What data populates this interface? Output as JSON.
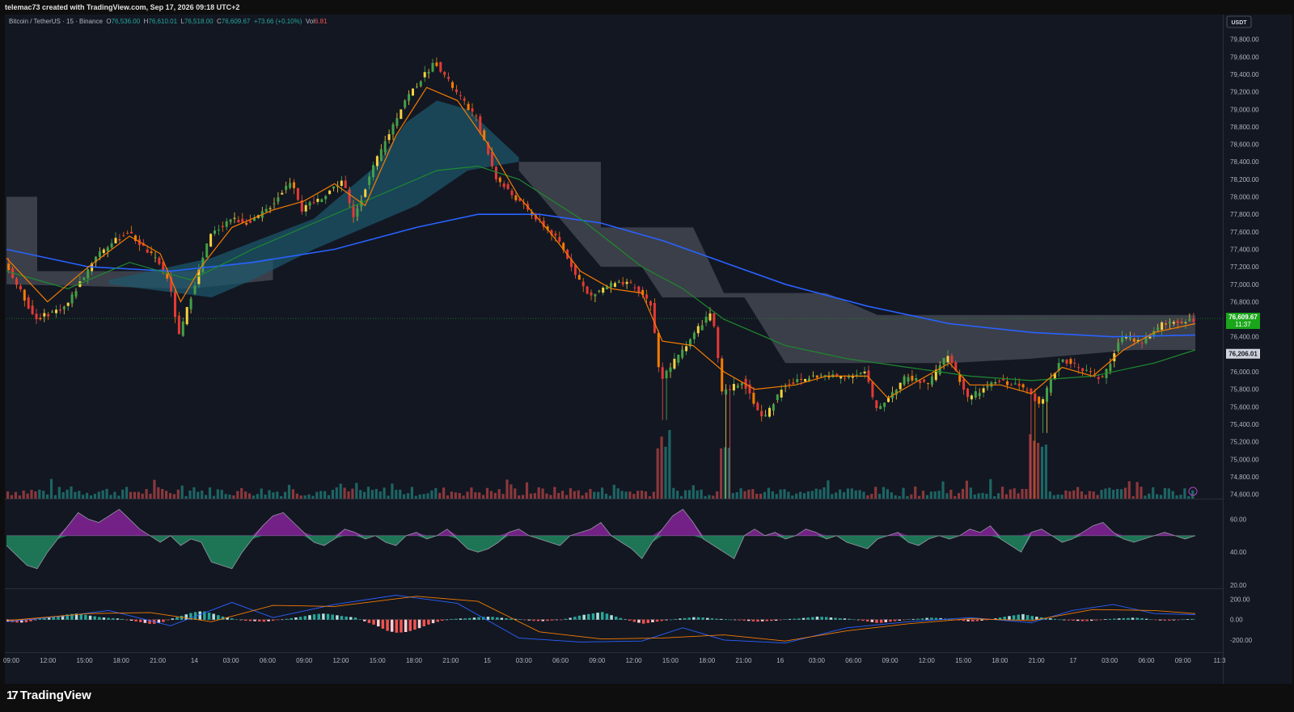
{
  "header": {
    "attribution": "telemac73 created with TradingView.com, Sep 17, 2026 09:18 UTC+2"
  },
  "legend": {
    "symbol": "Bitcoin / TetherUS · 15 · Binance",
    "open_label": "O",
    "open": "76,536.00",
    "high_label": "H",
    "high": "76,610.01",
    "low_label": "L",
    "low": "76,518.00",
    "close_label": "C",
    "close": "76,609.67",
    "change": "+73.66 (+0.10%)",
    "vol_label": "Vol",
    "vol": "6.81"
  },
  "currency_badge": "USDT",
  "price_badge": {
    "value": "76,609.67",
    "countdown": "11:37",
    "color": "#1aa61a"
  },
  "level_badge": {
    "value": "76,206.01"
  },
  "brand": {
    "name": "TradingView"
  },
  "colors": {
    "up": "#26a69a",
    "down": "#ef5350",
    "bg": "#131722",
    "ema_fast": "#f57c00",
    "ema_mid": "#1e8a2e",
    "ema_slow": "#2962ff"
  },
  "chart_data": [
    {
      "type": "candlestick",
      "price_ticks": [
        "79,800.00",
        "79,600.00",
        "79,400.00",
        "79,200.00",
        "79,000.00",
        "78,800.00",
        "78,600.00",
        "78,400.00",
        "78,200.00",
        "78,000.00",
        "77,800.00",
        "77,600.00",
        "77,400.00",
        "77,200.00",
        "77,000.00",
        "76,800.00",
        "76,400.00",
        "76,000.00",
        "75,800.00",
        "75,600.00",
        "75,400.00",
        "75,200.00",
        "75,000.00",
        "74,800.00",
        "74,600.00"
      ],
      "time_ticks": [
        "09:00",
        "12:00",
        "15:00",
        "18:00",
        "21:00",
        "14",
        "03:00",
        "06:00",
        "09:00",
        "12:00",
        "15:00",
        "18:00",
        "21:00",
        "15",
        "03:00",
        "06:00",
        "09:00",
        "12:00",
        "15:00",
        "18:00",
        "21:00",
        "16",
        "03:00",
        "06:00",
        "09:00",
        "12:00",
        "15:00",
        "18:00",
        "21:00",
        "17",
        "03:00",
        "06:00",
        "09:00",
        "11:3"
      ],
      "ylim": [
        74550,
        79880
      ],
      "path": [
        [
          0,
          77250
        ],
        [
          3,
          76600
        ],
        [
          6,
          76750
        ],
        [
          9,
          77350
        ],
        [
          12,
          77600
        ],
        [
          15,
          77250
        ],
        [
          16,
          77050
        ],
        [
          17,
          76400
        ],
        [
          18,
          76800
        ],
        [
          20,
          77550
        ],
        [
          22,
          77750
        ],
        [
          24,
          77700
        ],
        [
          26,
          77900
        ],
        [
          28,
          78200
        ],
        [
          29,
          77850
        ],
        [
          31,
          78000
        ],
        [
          33,
          78200
        ],
        [
          34,
          77750
        ],
        [
          36,
          78350
        ],
        [
          39,
          79100
        ],
        [
          42,
          79550
        ],
        [
          44,
          79200
        ],
        [
          46,
          78900
        ],
        [
          48,
          78200
        ],
        [
          51,
          77850
        ],
        [
          54,
          77500
        ],
        [
          57,
          76850
        ],
        [
          59,
          77000
        ],
        [
          61,
          77000
        ],
        [
          63,
          76800
        ],
        [
          64,
          75900
        ],
        [
          67,
          76400
        ],
        [
          69,
          76700
        ],
        [
          70,
          75750
        ],
        [
          72,
          75900
        ],
        [
          74,
          75450
        ],
        [
          76,
          75850
        ],
        [
          79,
          75950
        ],
        [
          82,
          75950
        ],
        [
          84,
          76000
        ],
        [
          85,
          75550
        ],
        [
          88,
          75950
        ],
        [
          90,
          75850
        ],
        [
          92,
          76200
        ],
        [
          94,
          75700
        ],
        [
          97,
          75900
        ],
        [
          100,
          75800
        ],
        [
          101,
          75600
        ],
        [
          103,
          76150
        ],
        [
          105,
          76050
        ],
        [
          107,
          75900
        ],
        [
          109,
          76400
        ],
        [
          111,
          76350
        ],
        [
          113,
          76550
        ],
        [
          116,
          76600
        ]
      ],
      "ema_fast": [
        [
          0,
          77300
        ],
        [
          4,
          76800
        ],
        [
          8,
          77200
        ],
        [
          12,
          77550
        ],
        [
          15,
          77350
        ],
        [
          17,
          76800
        ],
        [
          19,
          77200
        ],
        [
          22,
          77650
        ],
        [
          26,
          77850
        ],
        [
          29,
          77950
        ],
        [
          32,
          78150
        ],
        [
          35,
          77900
        ],
        [
          38,
          78700
        ],
        [
          41,
          79250
        ],
        [
          44,
          79100
        ],
        [
          47,
          78600
        ],
        [
          50,
          78000
        ],
        [
          53,
          77600
        ],
        [
          56,
          77150
        ],
        [
          59,
          76950
        ],
        [
          62,
          76900
        ],
        [
          64,
          76350
        ],
        [
          67,
          76300
        ],
        [
          70,
          76000
        ],
        [
          73,
          75800
        ],
        [
          77,
          75850
        ],
        [
          80,
          75950
        ],
        [
          84,
          75950
        ],
        [
          86,
          75700
        ],
        [
          89,
          75900
        ],
        [
          92,
          76100
        ],
        [
          94,
          75850
        ],
        [
          97,
          75850
        ],
        [
          100,
          75750
        ],
        [
          103,
          76050
        ],
        [
          106,
          75950
        ],
        [
          109,
          76250
        ],
        [
          112,
          76450
        ],
        [
          116,
          76550
        ]
      ],
      "ema_mid": [
        [
          0,
          77150
        ],
        [
          6,
          76950
        ],
        [
          12,
          77250
        ],
        [
          18,
          77050
        ],
        [
          24,
          77400
        ],
        [
          30,
          77700
        ],
        [
          36,
          78000
        ],
        [
          42,
          78300
        ],
        [
          46,
          78350
        ],
        [
          50,
          78200
        ],
        [
          56,
          77750
        ],
        [
          62,
          77200
        ],
        [
          66,
          76950
        ],
        [
          70,
          76600
        ],
        [
          76,
          76300
        ],
        [
          82,
          76150
        ],
        [
          88,
          76050
        ],
        [
          94,
          75950
        ],
        [
          100,
          75900
        ],
        [
          106,
          75950
        ],
        [
          112,
          76100
        ],
        [
          116,
          76250
        ]
      ],
      "ema_slow": [
        [
          0,
          77400
        ],
        [
          8,
          77200
        ],
        [
          16,
          77150
        ],
        [
          24,
          77250
        ],
        [
          32,
          77400
        ],
        [
          40,
          77650
        ],
        [
          46,
          77800
        ],
        [
          52,
          77800
        ],
        [
          58,
          77700
        ],
        [
          64,
          77500
        ],
        [
          70,
          77250
        ],
        [
          76,
          77000
        ],
        [
          84,
          76750
        ],
        [
          92,
          76550
        ],
        [
          100,
          76450
        ],
        [
          108,
          76400
        ],
        [
          116,
          76420
        ]
      ],
      "cloud_teal": [
        {
          "from": 10,
          "to": 40,
          "top": [
            [
              10,
              77050
            ],
            [
              20,
              77300
            ],
            [
              30,
              77750
            ],
            [
              36,
              78350
            ],
            [
              39,
              78850
            ],
            [
              42,
              79100
            ],
            [
              45,
              79000
            ],
            [
              50,
              78450
            ]
          ],
          "bot": [
            [
              10,
              77000
            ],
            [
              20,
              76850
            ],
            [
              24,
              77050
            ],
            [
              30,
              77400
            ],
            [
              36,
              77700
            ],
            [
              40,
              77900
            ],
            [
              45,
              78300
            ],
            [
              50,
              78400
            ]
          ]
        }
      ],
      "cloud_grey": [
        {
          "top": [
            [
              0,
              78000
            ],
            [
              3,
              78000
            ],
            [
              3,
              77150
            ],
            [
              18,
              77150
            ],
            [
              26,
              77300
            ]
          ],
          "bot": [
            [
              0,
              77000
            ],
            [
              18,
              76950
            ],
            [
              26,
              77050
            ]
          ]
        },
        {
          "top": [
            [
              50,
              78400
            ],
            [
              58,
              78400
            ],
            [
              58,
              77650
            ],
            [
              67,
              77650
            ],
            [
              70,
              76900
            ],
            [
              80,
              76900
            ],
            [
              85,
              76650
            ],
            [
              116,
              76650
            ]
          ],
          "bot": [
            [
              50,
              78300
            ],
            [
              58,
              77200
            ],
            [
              62,
              77200
            ],
            [
              64,
              76850
            ],
            [
              72,
              76850
            ],
            [
              76,
              76100
            ],
            [
              92,
              76100
            ],
            [
              100,
              76150
            ],
            [
              110,
              76250
            ],
            [
              116,
              76250
            ]
          ]
        }
      ],
      "spikes": [
        {
          "i": 64,
          "low": 75450
        },
        {
          "i": 70,
          "low": 74550
        },
        {
          "i": 100,
          "low": 74550
        },
        {
          "i": 101,
          "low": 75300
        }
      ]
    },
    {
      "type": "area",
      "name": "oscillator",
      "ticks": [
        "60.00",
        "40.00",
        "20.00"
      ],
      "ylim": [
        18,
        72
      ],
      "midline": 50,
      "values": [
        44,
        38,
        32,
        30,
        40,
        48,
        56,
        64,
        60,
        58,
        62,
        66,
        60,
        54,
        50,
        46,
        50,
        44,
        48,
        46,
        34,
        32,
        30,
        40,
        48,
        56,
        62,
        64,
        58,
        52,
        46,
        44,
        48,
        54,
        52,
        48,
        50,
        46,
        44,
        50,
        52,
        48,
        50,
        54,
        48,
        42,
        40,
        42,
        46,
        52,
        54,
        50,
        48,
        46,
        44,
        50,
        52,
        54,
        58,
        50,
        46,
        42,
        36,
        46,
        54,
        62,
        66,
        58,
        48,
        44,
        40,
        36,
        50,
        54,
        50,
        52,
        48,
        50,
        54,
        52,
        48,
        50,
        46,
        44,
        42,
        48,
        50,
        52,
        46,
        44,
        48,
        50,
        48,
        50,
        54,
        52,
        56,
        48,
        44,
        40,
        52,
        54,
        50,
        46,
        48,
        52,
        56,
        58,
        52,
        48,
        46,
        48,
        50,
        52,
        50,
        48,
        50
      ]
    },
    {
      "type": "histogram+lines",
      "name": "macd",
      "ticks": [
        "200.00",
        "0.00",
        "-200.00"
      ],
      "ylim": [
        -320,
        300
      ],
      "values": [
        -20,
        -30,
        -25,
        10,
        20,
        35,
        55,
        60,
        40,
        25,
        15,
        10,
        -10,
        -25,
        -45,
        -30,
        10,
        40,
        70,
        85,
        60,
        30,
        10,
        -10,
        -15,
        -20,
        -10,
        5,
        20,
        35,
        55,
        60,
        45,
        30,
        20,
        -25,
        -60,
        -110,
        -130,
        -120,
        -90,
        -50,
        -20,
        5,
        10,
        15,
        25,
        30,
        20,
        10,
        5,
        -10,
        -15,
        -10,
        0,
        20,
        45,
        60,
        75,
        40,
        10,
        -20,
        -40,
        -25,
        -10,
        5,
        15,
        25,
        20,
        10,
        5,
        -5,
        -10,
        -20,
        -15,
        -10,
        5,
        10,
        20,
        30,
        25,
        15,
        10,
        -5,
        -20,
        -35,
        -20,
        -10,
        5,
        10,
        20,
        15,
        5,
        -10,
        -20,
        -10,
        5,
        25,
        40,
        55,
        35,
        20,
        10,
        -5,
        -10,
        -15,
        -10,
        5,
        10,
        15,
        20,
        10,
        -5,
        -10,
        -5,
        5,
        10
      ],
      "macd_line": [
        [
          0,
          -20
        ],
        [
          6,
          40
        ],
        [
          10,
          90
        ],
        [
          16,
          -60
        ],
        [
          22,
          170
        ],
        [
          26,
          20
        ],
        [
          32,
          150
        ],
        [
          38,
          240
        ],
        [
          44,
          160
        ],
        [
          50,
          -180
        ],
        [
          56,
          -220
        ],
        [
          62,
          -210
        ],
        [
          66,
          -80
        ],
        [
          70,
          -200
        ],
        [
          76,
          -230
        ],
        [
          82,
          -80
        ],
        [
          88,
          -20
        ],
        [
          94,
          20
        ],
        [
          100,
          -30
        ],
        [
          104,
          90
        ],
        [
          108,
          150
        ],
        [
          112,
          60
        ],
        [
          116,
          50
        ]
      ],
      "signal_line": [
        [
          0,
          -10
        ],
        [
          8,
          60
        ],
        [
          14,
          70
        ],
        [
          20,
          -20
        ],
        [
          26,
          140
        ],
        [
          32,
          130
        ],
        [
          40,
          230
        ],
        [
          46,
          180
        ],
        [
          52,
          -120
        ],
        [
          58,
          -190
        ],
        [
          64,
          -180
        ],
        [
          70,
          -150
        ],
        [
          76,
          -210
        ],
        [
          82,
          -110
        ],
        [
          88,
          -40
        ],
        [
          94,
          10
        ],
        [
          100,
          -10
        ],
        [
          106,
          100
        ],
        [
          112,
          90
        ],
        [
          116,
          60
        ]
      ]
    }
  ]
}
